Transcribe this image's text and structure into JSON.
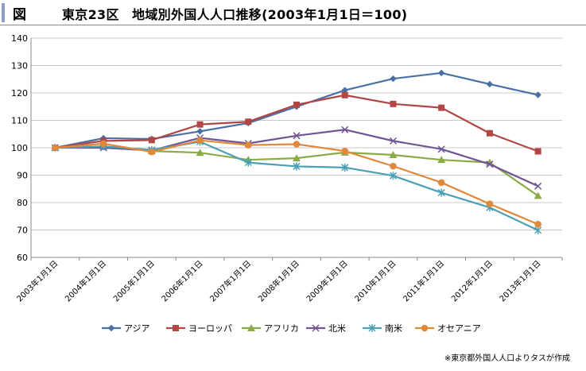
{
  "header": {
    "fig_label": "図",
    "title": "東京23区　地域別外国人人口推移(2003年1月1日＝100)"
  },
  "note": "※東京都外国人人口よりタスが作成",
  "chart_data": {
    "type": "line",
    "title": "東京23区　地域別外国人人口推移(2003年1月1日＝100)",
    "categories": [
      "2003年1月1日",
      "2004年1月1日",
      "2005年1月1日",
      "2006年1月1日",
      "2007年1月1日",
      "2008年1月1日",
      "2009年1月1日",
      "2010年1月1日",
      "2011年1月1日",
      "2012年1月1日",
      "2013年1月1日"
    ],
    "ylim": [
      60,
      140
    ],
    "yticks": [
      60,
      70,
      80,
      90,
      100,
      110,
      120,
      130,
      140
    ],
    "grid": "horizontal",
    "legend": "bottom",
    "series": [
      {
        "name": "アジア",
        "color": "#4a6fa5",
        "marker": "diamond",
        "values": [
          100,
          103.5,
          103.2,
          106,
          109,
          115,
          121,
          125.2,
          127.3,
          123.2,
          119.3
        ]
      },
      {
        "name": "ヨーロッパ",
        "color": "#b14745",
        "marker": "square",
        "values": [
          100,
          102.5,
          102.8,
          108.5,
          109.5,
          115.7,
          119.2,
          116,
          114.6,
          105.3,
          98.7
        ]
      },
      {
        "name": "アフリカ",
        "color": "#8aab45",
        "marker": "triangle",
        "values": [
          100,
          100.5,
          98.8,
          98.2,
          95.6,
          96.2,
          98.3,
          97.4,
          95.6,
          94.6,
          82.5
        ]
      },
      {
        "name": "北米",
        "color": "#6f5596",
        "marker": "x",
        "values": [
          100,
          100,
          99,
          103.6,
          101.6,
          104.4,
          106.6,
          102.5,
          99.5,
          94,
          86
        ]
      },
      {
        "name": "南米",
        "color": "#4aa0b5",
        "marker": "star",
        "values": [
          100,
          100.5,
          99.2,
          102.2,
          94.6,
          93.2,
          92.8,
          89.8,
          83.6,
          78.2,
          69.9
        ]
      },
      {
        "name": "オセアニア",
        "color": "#e0893a",
        "marker": "circle",
        "values": [
          100,
          101.5,
          98.5,
          102.7,
          101,
          101.3,
          98.8,
          93.3,
          87.3,
          79.5,
          72.1
        ]
      }
    ]
  }
}
